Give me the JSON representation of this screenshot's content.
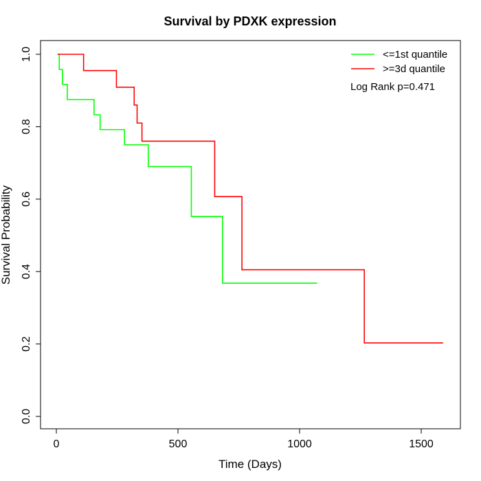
{
  "chart_data": {
    "type": "line",
    "title": "Survival by PDXK expression",
    "xlabel": "Time (Days)",
    "ylabel": "Survival Probability",
    "xlim": [
      0,
      1600
    ],
    "ylim": [
      0,
      1
    ],
    "x_ticks": [
      "0",
      "500",
      "1000",
      "1500"
    ],
    "y_ticks": [
      "0.0",
      "0.2",
      "0.4",
      "0.6",
      "0.8",
      "1.0"
    ],
    "x_tick_values": [
      0,
      500,
      1000,
      1500
    ],
    "y_tick_values": [
      0,
      0.2,
      0.4,
      0.6,
      0.8,
      1.0
    ],
    "legend_position": "top-right",
    "annotation": "Log Rank p=0.471",
    "series": [
      {
        "name": "<=1st quantile",
        "color": "#00ff00",
        "steps": [
          [
            5,
            1.0
          ],
          [
            12,
            0.958
          ],
          [
            25,
            0.917
          ],
          [
            45,
            0.875
          ],
          [
            155,
            0.833
          ],
          [
            180,
            0.792
          ],
          [
            280,
            0.75
          ],
          [
            378,
            0.69
          ],
          [
            555,
            0.552
          ],
          [
            683,
            0.368
          ],
          [
            1072,
            0.368
          ]
        ]
      },
      {
        "name": ">=3d quantile",
        "color": "#ff0000",
        "steps": [
          [
            5,
            1.0
          ],
          [
            112,
            0.955
          ],
          [
            247,
            0.909
          ],
          [
            320,
            0.86
          ],
          [
            332,
            0.81
          ],
          [
            352,
            0.76
          ],
          [
            651,
            0.607
          ],
          [
            763,
            0.405
          ],
          [
            1266,
            0.203
          ],
          [
            1590,
            0.203
          ]
        ]
      }
    ]
  }
}
